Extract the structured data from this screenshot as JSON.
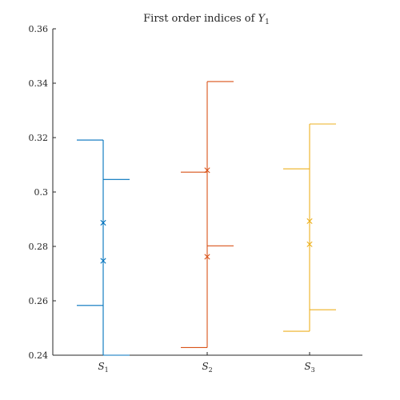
{
  "chart_data": {
    "type": "errorbar",
    "title": "First order indices of ",
    "title_math_var": "Y",
    "title_math_sub": "1",
    "ylim": [
      0.24,
      0.36
    ],
    "yticks": [
      0.24,
      0.26,
      0.28,
      0.3,
      0.32,
      0.34,
      0.36
    ],
    "ytick_labels": [
      "0.24",
      "0.26",
      "0.28",
      "0.3",
      "0.32",
      "0.34",
      "0.36"
    ],
    "categories": [
      {
        "var": "S",
        "sub": "1"
      },
      {
        "var": "S",
        "sub": "2"
      },
      {
        "var": "S",
        "sub": "3"
      }
    ],
    "grid": false,
    "series": [
      {
        "color": "#0072BD",
        "markers": [
          0.2887,
          0.2747
        ],
        "left_interval": [
          0.2583,
          0.3191
        ],
        "right_interval": [
          0.24,
          0.3046
        ]
      },
      {
        "color": "#D95319",
        "markers": [
          0.308,
          0.2762
        ],
        "left_interval": [
          0.2428,
          0.3073
        ],
        "right_interval": [
          0.2802,
          0.3406
        ]
      },
      {
        "color": "#EDB120",
        "markers": [
          0.2893,
          0.2808
        ],
        "left_interval": [
          0.2488,
          0.3085
        ],
        "right_interval": [
          0.2567,
          0.325
        ]
      }
    ]
  }
}
